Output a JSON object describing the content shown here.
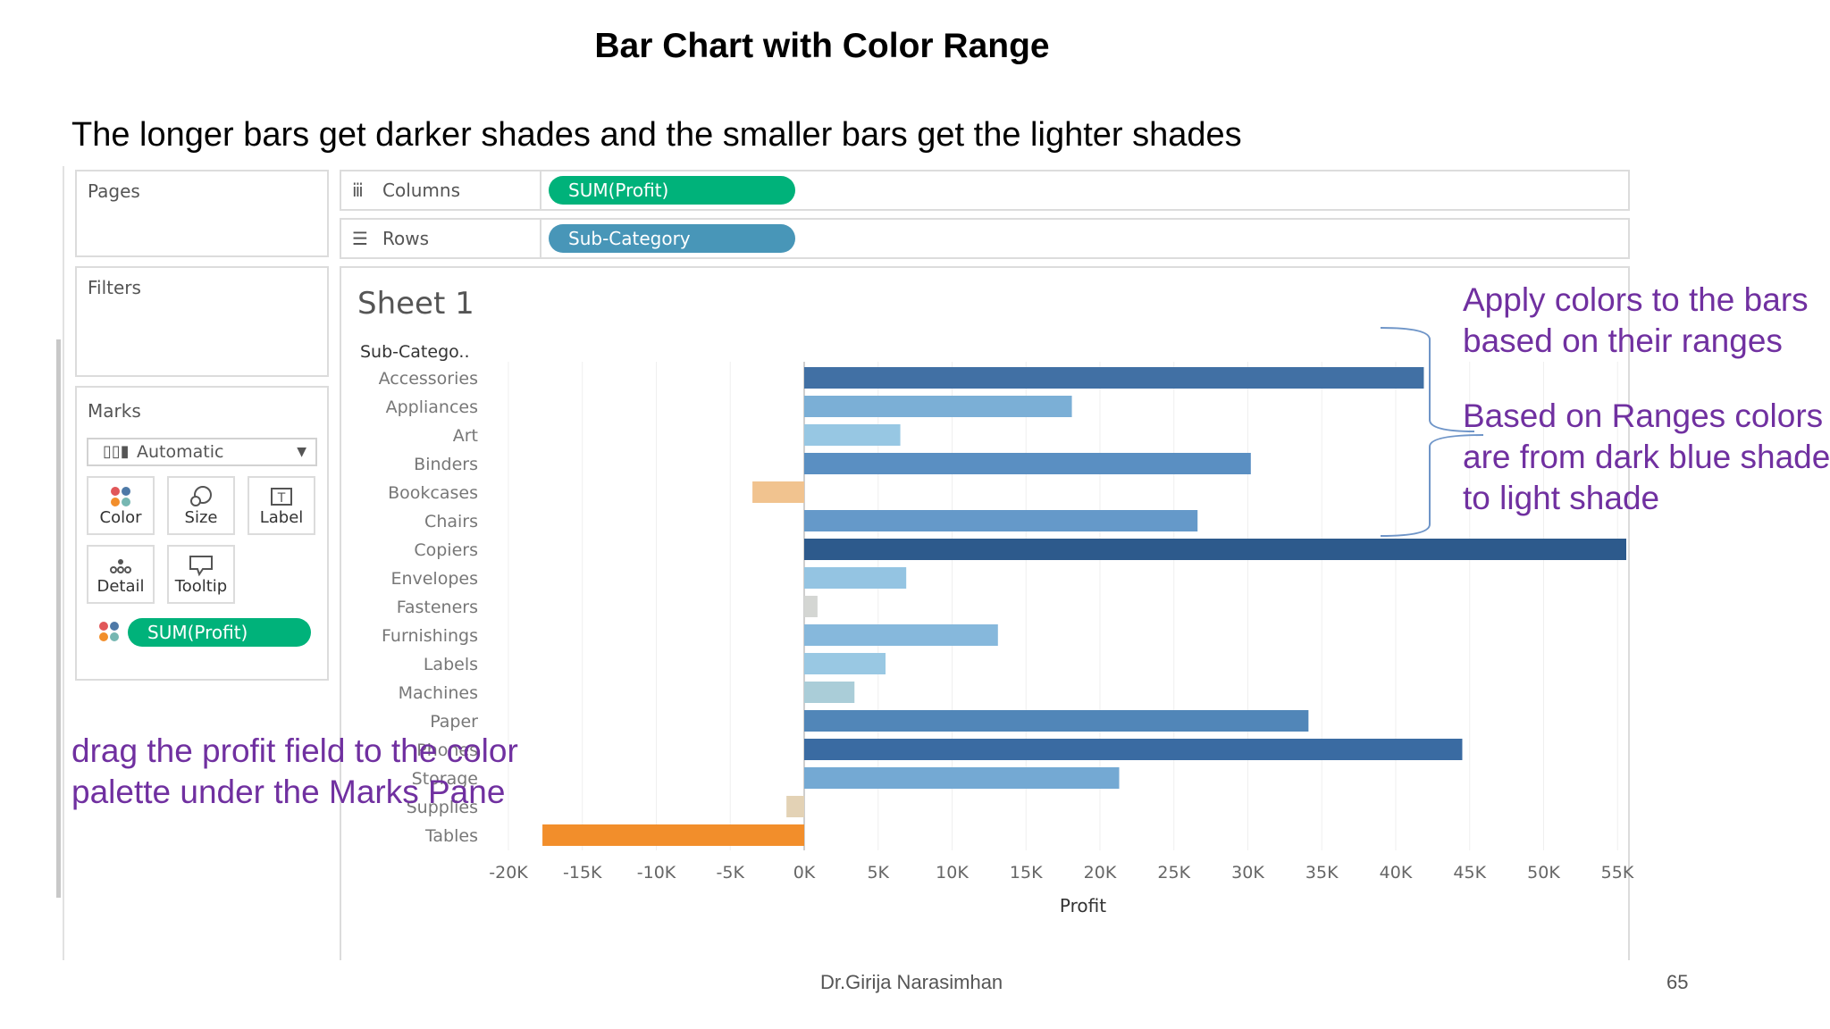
{
  "slide": {
    "title": "Bar Chart with Color Range",
    "subtitle": "The longer bars get darker shades and the smaller bars get the lighter shades",
    "footer_author": "Dr.Girija Narasimhan",
    "footer_page": "65"
  },
  "panels": {
    "pages_label": "Pages",
    "filters_label": "Filters",
    "marks_label": "Marks",
    "mark_type": "Automatic",
    "mark_buttons": [
      {
        "label": "Color",
        "icon": "color-dots-icon"
      },
      {
        "label": "Size",
        "icon": "size-icon"
      },
      {
        "label": "Label",
        "icon": "label-icon"
      },
      {
        "label": "Detail",
        "icon": "detail-icon"
      },
      {
        "label": "Tooltip",
        "icon": "tooltip-icon"
      }
    ],
    "color_pill": "SUM(Profit)"
  },
  "shelves": {
    "columns_label": "Columns",
    "columns_pill": "SUM(Profit)",
    "rows_label": "Rows",
    "rows_pill": "Sub-Category"
  },
  "sheet": {
    "title": "Sheet 1",
    "row_header": "Sub-Catego.."
  },
  "annotations": {
    "top_right_1": "Apply colors to the bars",
    "top_right_2": "based on their ranges",
    "mid_right_1": "Based on Ranges colors",
    "mid_right_2": "are from dark blue shade",
    "mid_right_3": "to light shade",
    "bottom_left_1": "drag the profit field to the color",
    "bottom_left_2": "palette under the Marks Pane"
  },
  "colors": {
    "pill_green": "#00b27a",
    "pill_blue": "#4896b8",
    "annotation": "#7030a0",
    "negative_large": "#f28e2b",
    "negative_small": "#f1c38f"
  },
  "chart_data": {
    "type": "bar",
    "orientation": "horizontal",
    "title": "Sheet 1",
    "xlabel": "Profit",
    "ylabel": "Sub-Catego..",
    "xlim": [
      -20000,
      55000
    ],
    "x_ticks": [
      "-20K",
      "-15K",
      "-10K",
      "-5K",
      "0K",
      "5K",
      "10K",
      "15K",
      "20K",
      "25K",
      "30K",
      "35K",
      "40K",
      "45K",
      "50K",
      "55K"
    ],
    "grid": true,
    "categories": [
      "Accessories",
      "Appliances",
      "Art",
      "Binders",
      "Bookcases",
      "Chairs",
      "Copiers",
      "Envelopes",
      "Fasteners",
      "Furnishings",
      "Labels",
      "Machines",
      "Paper",
      "Phones",
      "Storage",
      "Supplies",
      "Tables"
    ],
    "values": [
      41900,
      18100,
      6500,
      30200,
      -3500,
      26600,
      55600,
      6900,
      900,
      13100,
      5500,
      3400,
      34100,
      44500,
      21300,
      -1200,
      -17700
    ],
    "colors": [
      "#4170a4",
      "#7bafd6",
      "#97c7e3",
      "#5a8fc2",
      "#f1c38f",
      "#6599c9",
      "#2d5a8c",
      "#94c4e2",
      "#d4d6d3",
      "#86b8dc",
      "#99c8e3",
      "#aacdd8",
      "#5186b8",
      "#3a6ba2",
      "#74a9d3",
      "#e3d2b5",
      "#f28e2b"
    ]
  }
}
